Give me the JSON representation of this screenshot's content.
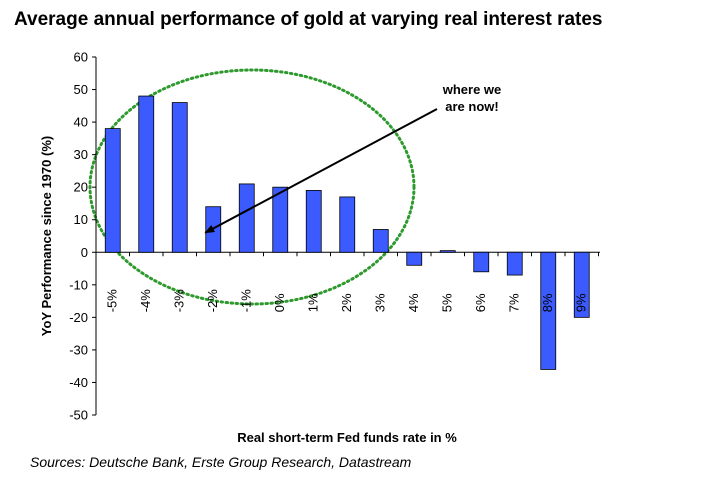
{
  "title": "Average annual performance of gold at varying real interest rates",
  "source": "Sources: Deutsche Bank, Erste Group Research, Datastream",
  "chart_data": {
    "type": "bar",
    "title": "Average annual performance of gold at varying real interest rates",
    "xlabel": "Real short-term Fed funds rate in %",
    "ylabel": "YoY Performance since 1970 (%)",
    "ylim": [
      -50,
      60
    ],
    "yticks": [
      -50,
      -40,
      -30,
      -20,
      -10,
      0,
      10,
      20,
      30,
      40,
      50,
      60
    ],
    "categories": [
      "-5%",
      "-4%",
      "-3%",
      "-2%",
      "-1%",
      "0%",
      "1%",
      "2%",
      "3%",
      "4%",
      "5%",
      "6%",
      "7%",
      "8%",
      "9%"
    ],
    "values": [
      38,
      48,
      46,
      14,
      21,
      20,
      19,
      17,
      7,
      -4,
      0.5,
      -6,
      -7,
      -36,
      -20
    ],
    "grid": false,
    "legend": "none",
    "annotation": {
      "lines": [
        "where we",
        "are now!"
      ],
      "points_to_category": "-2%"
    },
    "highlight": {
      "shape": "dotted-ellipse",
      "color": "#2e9a2e",
      "covers_categories": [
        "-5%",
        "-4%",
        "-3%",
        "-2%",
        "-1%",
        "0%",
        "1%",
        "2%",
        "3%"
      ]
    },
    "colors": {
      "bar_fill": "#3b5bff",
      "bar_stroke": "#000000"
    }
  }
}
